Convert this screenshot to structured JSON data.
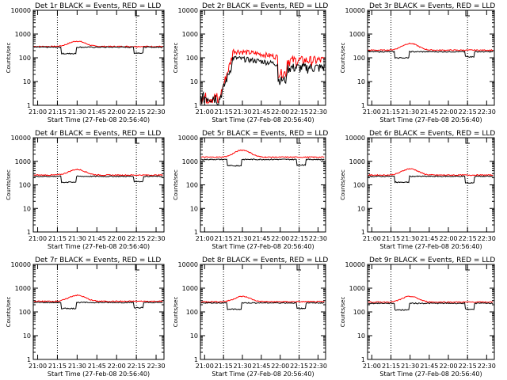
{
  "chart_data": [
    {
      "type": "line",
      "title": "Det 1r BLACK = Events, RED = LLD",
      "xlabel": "Start Time (27-Feb-08 20:56:40)",
      "ylabel": "Counts/sec",
      "yscale": "log",
      "ylim": [
        1,
        10000
      ],
      "xticks": [
        "21:00",
        "21:15",
        "21:30",
        "21:45",
        "22:00",
        "22:15",
        "22:30"
      ],
      "yticks": [
        "1",
        "10",
        "100",
        "1000",
        "10000"
      ],
      "dotted_lines_x": [
        "21:15",
        "22:15"
      ],
      "profile": "flat",
      "series": [
        {
          "color": "#ff0000",
          "base": 300,
          "peak": 500
        },
        {
          "color": "#000000",
          "base": 280,
          "dip1": 150,
          "dip2": 160
        }
      ]
    },
    {
      "type": "line",
      "title": "Det 2r BLACK = Events, RED = LLD",
      "xlabel": "Start Time (27-Feb-08 20:56:40)",
      "ylabel": "Counts/sec",
      "yscale": "log",
      "ylim": [
        1,
        10000
      ],
      "xticks": [
        "21:00",
        "21:15",
        "21:30",
        "21:45",
        "22:00",
        "22:15",
        "22:30"
      ],
      "yticks": [
        "1",
        "10",
        "100",
        "1000",
        "10000"
      ],
      "dotted_lines_x": [
        "21:15",
        "22:15"
      ],
      "profile": "noisy",
      "series": [
        {
          "color": "#ff0000",
          "base": 120,
          "peak": 200
        },
        {
          "color": "#000000",
          "base": 60,
          "peak": 100
        }
      ]
    },
    {
      "type": "line",
      "title": "Det 3r BLACK = Events, RED = LLD",
      "xlabel": "Start Time (27-Feb-08 20:56:40)",
      "ylabel": "Counts/sec",
      "yscale": "log",
      "ylim": [
        1,
        10000
      ],
      "xticks": [
        "21:00",
        "21:15",
        "21:30",
        "21:45",
        "22:00",
        "22:15",
        "22:30"
      ],
      "yticks": [
        "1",
        "10",
        "100",
        "1000",
        "10000"
      ],
      "dotted_lines_x": [
        "21:15",
        "22:15"
      ],
      "profile": "flat",
      "series": [
        {
          "color": "#ff0000",
          "base": 210,
          "peak": 400
        },
        {
          "color": "#000000",
          "base": 180,
          "dip1": 100,
          "dip2": 110
        }
      ]
    },
    {
      "type": "line",
      "title": "Det 4r BLACK = Events, RED = LLD",
      "xlabel": "Start Time (27-Feb-08 20:56:40)",
      "ylabel": "Counts/sec",
      "yscale": "log",
      "ylim": [
        1,
        10000
      ],
      "xticks": [
        "21:00",
        "21:15",
        "21:30",
        "21:45",
        "22:00",
        "22:15",
        "22:30"
      ],
      "yticks": [
        "1",
        "10",
        "100",
        "1000",
        "10000"
      ],
      "dotted_lines_x": [
        "21:15",
        "22:15"
      ],
      "profile": "flat",
      "series": [
        {
          "color": "#ff0000",
          "base": 260,
          "peak": 450
        },
        {
          "color": "#000000",
          "base": 230,
          "dip1": 130,
          "dip2": 140
        }
      ]
    },
    {
      "type": "line",
      "title": "Det 5r BLACK = Events, RED = LLD",
      "xlabel": "Start Time (27-Feb-08 20:56:40)",
      "ylabel": "Counts/sec",
      "yscale": "log",
      "ylim": [
        1,
        10000
      ],
      "xticks": [
        "21:00",
        "21:15",
        "21:30",
        "21:45",
        "22:00",
        "22:15",
        "22:30"
      ],
      "yticks": [
        "1",
        "10",
        "100",
        "1000",
        "10000"
      ],
      "dotted_lines_x": [
        "21:15",
        "22:15"
      ],
      "profile": "flat",
      "series": [
        {
          "color": "#ff0000",
          "base": 1500,
          "peak": 3000
        },
        {
          "color": "#000000",
          "base": 1200,
          "dip1": 650,
          "dip2": 700
        }
      ]
    },
    {
      "type": "line",
      "title": "Det 6r BLACK = Events, RED = LLD",
      "xlabel": "Start Time (27-Feb-08 20:56:40)",
      "ylabel": "Counts/sec",
      "yscale": "log",
      "ylim": [
        1,
        10000
      ],
      "xticks": [
        "21:00",
        "21:15",
        "21:30",
        "21:45",
        "22:00",
        "22:15",
        "22:30"
      ],
      "yticks": [
        "1",
        "10",
        "100",
        "1000",
        "10000"
      ],
      "dotted_lines_x": [
        "21:15",
        "22:15"
      ],
      "profile": "flat",
      "series": [
        {
          "color": "#ff0000",
          "base": 260,
          "peak": 480
        },
        {
          "color": "#000000",
          "base": 230,
          "dip1": 130,
          "dip2": 120
        }
      ]
    },
    {
      "type": "line",
      "title": "Det 7r BLACK = Events, RED = LLD",
      "xlabel": "Start Time (27-Feb-08 20:56:40)",
      "ylabel": "Counts/sec",
      "yscale": "log",
      "ylim": [
        1,
        10000
      ],
      "xticks": [
        "21:00",
        "21:15",
        "21:30",
        "21:45",
        "22:00",
        "22:15",
        "22:30"
      ],
      "yticks": [
        "1",
        "10",
        "100",
        "1000",
        "10000"
      ],
      "dotted_lines_x": [
        "21:15",
        "22:15"
      ],
      "profile": "flat",
      "series": [
        {
          "color": "#ff0000",
          "base": 280,
          "peak": 500
        },
        {
          "color": "#000000",
          "base": 250,
          "dip1": 140,
          "dip2": 150
        }
      ]
    },
    {
      "type": "line",
      "title": "Det 8r BLACK = Events, RED = LLD",
      "xlabel": "Start Time (27-Feb-08 20:56:40)",
      "ylabel": "Counts/sec",
      "yscale": "log",
      "ylim": [
        1,
        10000
      ],
      "xticks": [
        "21:00",
        "21:15",
        "21:30",
        "21:45",
        "22:00",
        "22:15",
        "22:30"
      ],
      "yticks": [
        "1",
        "10",
        "100",
        "1000",
        "10000"
      ],
      "dotted_lines_x": [
        "21:15",
        "22:15"
      ],
      "profile": "flat",
      "series": [
        {
          "color": "#ff0000",
          "base": 270,
          "peak": 450
        },
        {
          "color": "#000000",
          "base": 240,
          "dip1": 130,
          "dip2": 140
        }
      ]
    },
    {
      "type": "line",
      "title": "Det 9r BLACK = Events, RED = LLD",
      "xlabel": "Start Time (27-Feb-08 20:56:40)",
      "ylabel": "Counts/sec",
      "yscale": "log",
      "ylim": [
        1,
        10000
      ],
      "xticks": [
        "21:00",
        "21:15",
        "21:30",
        "21:45",
        "22:00",
        "22:15",
        "22:30"
      ],
      "yticks": [
        "1",
        "10",
        "100",
        "1000",
        "10000"
      ],
      "dotted_lines_x": [
        "21:15",
        "22:15"
      ],
      "profile": "flat",
      "series": [
        {
          "color": "#ff0000",
          "base": 260,
          "peak": 450
        },
        {
          "color": "#000000",
          "base": 230,
          "dip1": 120,
          "dip2": 130
        }
      ]
    }
  ]
}
